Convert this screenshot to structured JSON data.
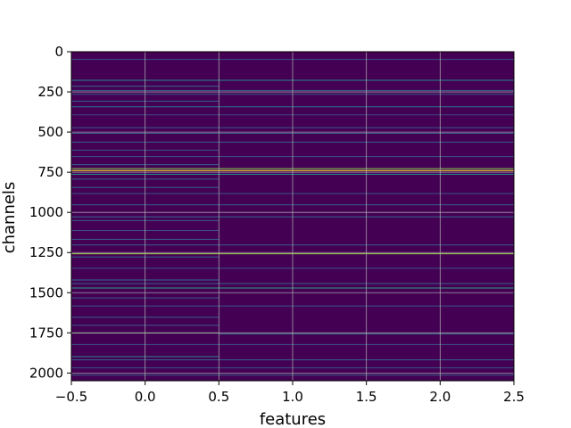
{
  "chart_data": {
    "type": "heatmap",
    "title": "",
    "xlabel": "features",
    "ylabel": "channels",
    "xlim": [
      -0.5,
      2.5
    ],
    "ylim": [
      2048,
      0
    ],
    "y_inverted": true,
    "x_ticks": [
      -0.5,
      0.0,
      0.5,
      1.0,
      1.5,
      2.0,
      2.5
    ],
    "x_tick_labels": [
      "−0.5",
      "0.0",
      "0.5",
      "1.0",
      "1.5",
      "2.0",
      "2.5"
    ],
    "y_ticks": [
      0,
      250,
      500,
      750,
      1000,
      1250,
      1500,
      1750,
      2000
    ],
    "y_tick_labels": [
      "0",
      "250",
      "500",
      "750",
      "1000",
      "1250",
      "1500",
      "1750",
      "2000"
    ],
    "grid": true,
    "colormap": "viridis",
    "background_value": 0.0,
    "columns": [
      0,
      1,
      2
    ],
    "rows": 2048,
    "bands": [
      {
        "y": 45,
        "h": 4,
        "cols": [
          0,
          1,
          2
        ],
        "v": 0.25
      },
      {
        "y": 175,
        "h": 4,
        "cols": [
          0,
          1,
          2
        ],
        "v": 0.45
      },
      {
        "y": 212,
        "h": 3,
        "cols": [
          0
        ],
        "v": 0.35
      },
      {
        "y": 238,
        "h": 3,
        "cols": [
          0,
          1,
          2
        ],
        "v": 0.3
      },
      {
        "y": 262,
        "h": 4,
        "cols": [
          0,
          1,
          2
        ],
        "v": 0.28
      },
      {
        "y": 305,
        "h": 3,
        "cols": [
          0
        ],
        "v": 0.3
      },
      {
        "y": 340,
        "h": 4,
        "cols": [
          0,
          1,
          2
        ],
        "v": 0.38
      },
      {
        "y": 390,
        "h": 3,
        "cols": [
          0,
          1,
          2
        ],
        "v": 0.22
      },
      {
        "y": 470,
        "h": 3,
        "cols": [
          0,
          1,
          2
        ],
        "v": 0.25
      },
      {
        "y": 505,
        "h": 4,
        "cols": [
          0,
          1,
          2
        ],
        "v": 0.32
      },
      {
        "y": 560,
        "h": 3,
        "cols": [
          0,
          1,
          2
        ],
        "v": 0.3
      },
      {
        "y": 610,
        "h": 3,
        "cols": [
          0
        ],
        "v": 0.28
      },
      {
        "y": 650,
        "h": 3,
        "cols": [
          0,
          1,
          2
        ],
        "v": 0.25
      },
      {
        "y": 700,
        "h": 4,
        "cols": [
          0
        ],
        "v": 0.3
      },
      {
        "y": 725,
        "h": 3,
        "cols": [
          0,
          1,
          2
        ],
        "v": 0.8
      },
      {
        "y": 737,
        "h": 5,
        "cols": [
          0,
          1,
          2
        ],
        "v": 1.0
      },
      {
        "y": 760,
        "h": 3,
        "cols": [
          0,
          1,
          2
        ],
        "v": 0.5
      },
      {
        "y": 790,
        "h": 3,
        "cols": [
          0
        ],
        "v": 0.28
      },
      {
        "y": 842,
        "h": 3,
        "cols": [
          0
        ],
        "v": 0.3
      },
      {
        "y": 880,
        "h": 3,
        "cols": [
          0,
          1,
          2
        ],
        "v": 0.25
      },
      {
        "y": 950,
        "h": 3,
        "cols": [
          0,
          1,
          2
        ],
        "v": 0.3
      },
      {
        "y": 1025,
        "h": 3,
        "cols": [
          0,
          1,
          2
        ],
        "v": 0.35
      },
      {
        "y": 1048,
        "h": 3,
        "cols": [
          0
        ],
        "v": 0.3
      },
      {
        "y": 1110,
        "h": 3,
        "cols": [
          0
        ],
        "v": 0.25
      },
      {
        "y": 1165,
        "h": 3,
        "cols": [
          0
        ],
        "v": 0.3
      },
      {
        "y": 1200,
        "h": 3,
        "cols": [
          0,
          1,
          2
        ],
        "v": 0.28
      },
      {
        "y": 1255,
        "h": 4,
        "cols": [
          0,
          1,
          2
        ],
        "v": 0.85
      },
      {
        "y": 1275,
        "h": 3,
        "cols": [
          0
        ],
        "v": 0.3
      },
      {
        "y": 1345,
        "h": 3,
        "cols": [
          0,
          1,
          2
        ],
        "v": 0.25
      },
      {
        "y": 1418,
        "h": 3,
        "cols": [
          0
        ],
        "v": 0.35
      },
      {
        "y": 1440,
        "h": 3,
        "cols": [
          0,
          1,
          2
        ],
        "v": 0.3
      },
      {
        "y": 1468,
        "h": 4,
        "cols": [
          0,
          1,
          2
        ],
        "v": 0.55
      },
      {
        "y": 1530,
        "h": 3,
        "cols": [
          0
        ],
        "v": 0.28
      },
      {
        "y": 1580,
        "h": 3,
        "cols": [
          0,
          1,
          2
        ],
        "v": 0.25
      },
      {
        "y": 1650,
        "h": 3,
        "cols": [
          0
        ],
        "v": 0.3
      },
      {
        "y": 1700,
        "h": 3,
        "cols": [
          0
        ],
        "v": 0.28
      },
      {
        "y": 1748,
        "h": 3,
        "cols": [
          0
        ],
        "v": 0.75
      },
      {
        "y": 1753,
        "h": 3,
        "cols": [
          1,
          2
        ],
        "v": 0.35
      },
      {
        "y": 1820,
        "h": 3,
        "cols": [
          0,
          1,
          2
        ],
        "v": 0.25
      },
      {
        "y": 1895,
        "h": 3,
        "cols": [
          0
        ],
        "v": 0.45
      },
      {
        "y": 1915,
        "h": 3,
        "cols": [
          0,
          1,
          2
        ],
        "v": 0.3
      },
      {
        "y": 1965,
        "h": 3,
        "cols": [
          0,
          1,
          2
        ],
        "v": 0.25
      },
      {
        "y": 2010,
        "h": 3,
        "cols": [
          0,
          1,
          2
        ],
        "v": 0.3
      }
    ]
  }
}
